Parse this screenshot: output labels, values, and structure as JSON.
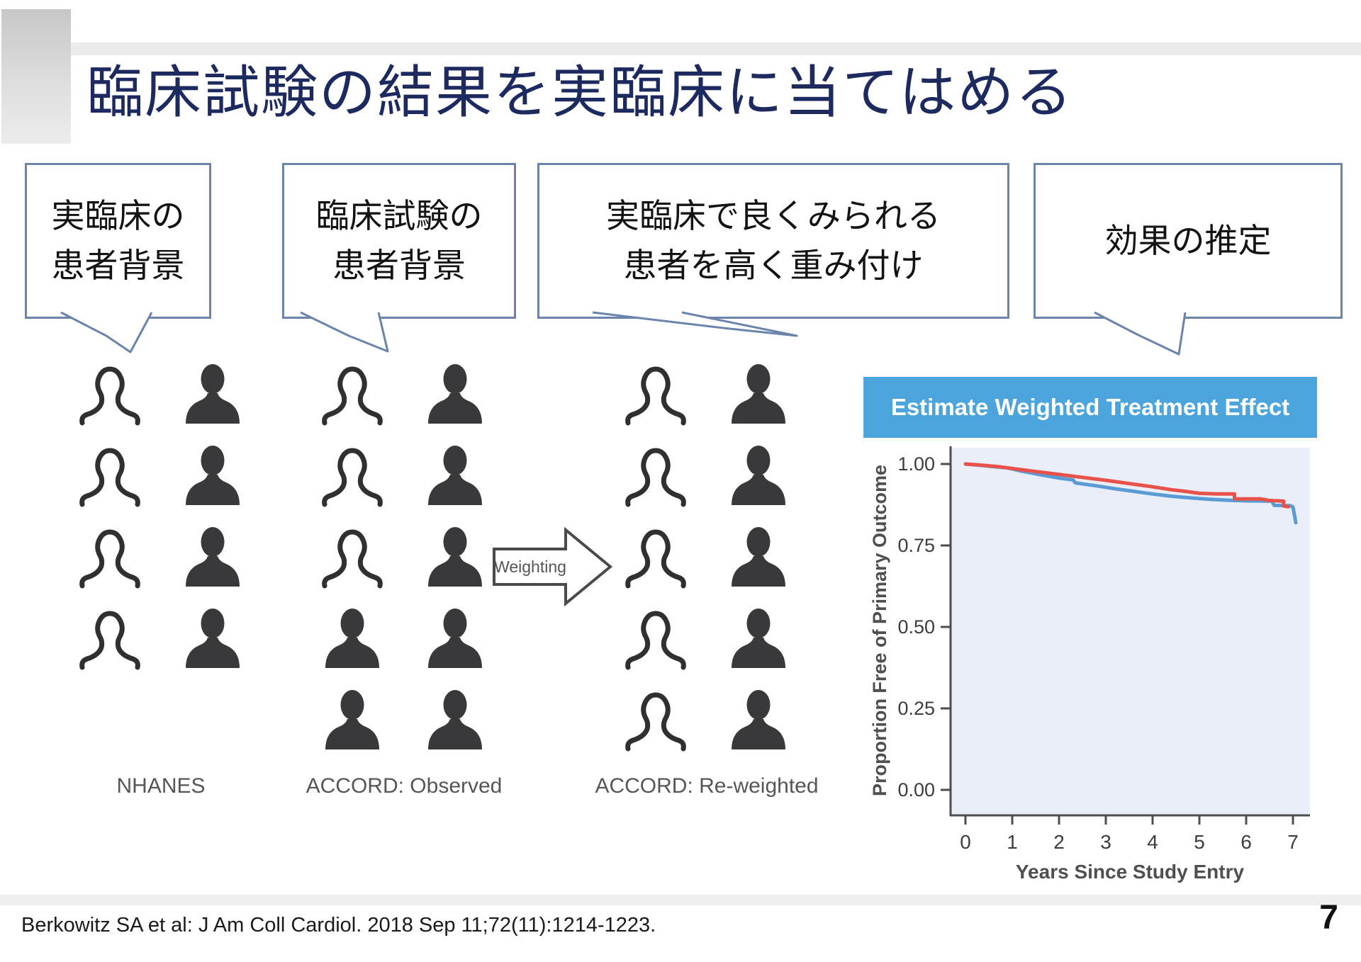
{
  "slide": {
    "title": "臨床試験の結果を実臨床に当てはめる",
    "citation": "Berkowitz SA et al: J Am Coll Cardiol. 2018 Sep 11;72(11):1214-1223.",
    "page_number": "7"
  },
  "callouts": [
    {
      "lines": [
        "実臨床の",
        "患者背景"
      ]
    },
    {
      "lines": [
        "臨床試験の",
        "患者背景"
      ]
    },
    {
      "lines": [
        "実臨床で良くみられる",
        "患者を高く重み付け"
      ]
    },
    {
      "lines": [
        "効果の推定"
      ]
    }
  ],
  "arrow_label": "Weighting",
  "groups": [
    {
      "label": "NHANES",
      "rows": [
        [
          "outline",
          "filled"
        ],
        [
          "outline",
          "filled"
        ],
        [
          "outline",
          "filled"
        ],
        [
          "outline",
          "filled"
        ]
      ]
    },
    {
      "label": "ACCORD: Observed",
      "rows": [
        [
          "outline",
          "filled"
        ],
        [
          "outline",
          "filled"
        ],
        [
          "outline",
          "filled"
        ],
        [
          "filled",
          "filled"
        ],
        [
          "filled",
          "filled"
        ]
      ]
    },
    {
      "label": "ACCORD: Re-weighted",
      "rows": [
        [
          "outline",
          "filled"
        ],
        [
          "outline",
          "filled"
        ],
        [
          "outline",
          "filled"
        ],
        [
          "outline",
          "filled"
        ],
        [
          "outline",
          "filled"
        ]
      ]
    }
  ],
  "chart_data": {
    "type": "line",
    "title": "Estimate Weighted Treatment Effect",
    "xlabel": "Years Since Study Entry",
    "ylabel": "Proportion Free of Primary Outcome",
    "xticks": [
      0,
      1,
      2,
      3,
      4,
      5,
      6,
      7
    ],
    "ytick_labels": [
      "1.00",
      "0.75",
      "0.50",
      "0.25",
      "0.00"
    ],
    "ytick_values": [
      1.0,
      0.75,
      0.5,
      0.25,
      0.0
    ],
    "xlim": [
      0,
      7.35
    ],
    "ylim": [
      0,
      1.05
    ],
    "grid": false,
    "legend_position": "none",
    "plot_background": "#e9eef8",
    "series": [
      {
        "name": "blue-curve",
        "color": "#5b9bd5",
        "points": [
          [
            0,
            1.0
          ],
          [
            0.3,
            0.996
          ],
          [
            0.6,
            0.992
          ],
          [
            0.9,
            0.988
          ],
          [
            1.2,
            0.978
          ],
          [
            1.6,
            0.967
          ],
          [
            2.0,
            0.957
          ],
          [
            2.3,
            0.951
          ],
          [
            2.35,
            0.942
          ],
          [
            2.8,
            0.933
          ],
          [
            3.2,
            0.924
          ],
          [
            3.6,
            0.916
          ],
          [
            4.0,
            0.908
          ],
          [
            4.4,
            0.901
          ],
          [
            4.8,
            0.896
          ],
          [
            5.2,
            0.892
          ],
          [
            5.6,
            0.889
          ],
          [
            6.0,
            0.887
          ],
          [
            6.55,
            0.886
          ],
          [
            6.6,
            0.873
          ],
          [
            6.95,
            0.872
          ],
          [
            7.0,
            0.868
          ],
          [
            7.03,
            0.845
          ],
          [
            7.06,
            0.82
          ]
        ]
      },
      {
        "name": "red-curve",
        "color": "#e8524a",
        "points": [
          [
            0,
            1.0
          ],
          [
            0.3,
            0.997
          ],
          [
            0.7,
            0.992
          ],
          [
            1.0,
            0.986
          ],
          [
            1.5,
            0.977
          ],
          [
            2.0,
            0.968
          ],
          [
            2.5,
            0.959
          ],
          [
            3.0,
            0.95
          ],
          [
            3.5,
            0.94
          ],
          [
            4.0,
            0.93
          ],
          [
            4.4,
            0.921
          ],
          [
            4.7,
            0.916
          ],
          [
            5.0,
            0.91
          ],
          [
            5.4,
            0.908
          ],
          [
            5.75,
            0.908
          ],
          [
            5.75,
            0.893
          ],
          [
            6.3,
            0.893
          ],
          [
            6.5,
            0.888
          ],
          [
            6.8,
            0.886
          ],
          [
            6.8,
            0.871
          ],
          [
            6.9,
            0.869
          ]
        ]
      }
    ]
  },
  "colors": {
    "title_navy": "#1d2a5f",
    "bubble_border": "#6b84ac",
    "banner_blue": "#4ba4dc",
    "icon_dark": "#39393c",
    "axis_gray": "#4d4d4d"
  }
}
